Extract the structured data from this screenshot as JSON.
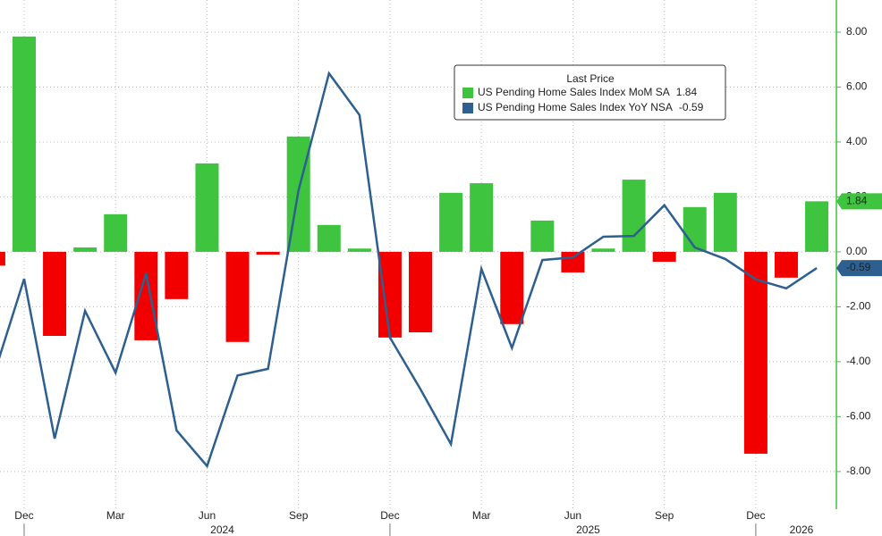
{
  "chart_data": {
    "type": "bar-line",
    "categories": [
      null,
      "Dec",
      null,
      null,
      "Mar",
      null,
      null,
      "Jun",
      null,
      null,
      "Sep",
      null,
      null,
      "Dec",
      null,
      null,
      "Mar",
      null,
      null,
      "Jun",
      null,
      null,
      "Sep",
      null,
      null,
      "Dec",
      null,
      null
    ],
    "year_labels": [
      "2024",
      "2025",
      "2026"
    ],
    "legend_title": "Last Price",
    "series": [
      {
        "name": "US Pending Home Sales Index MoM SA",
        "type": "bar",
        "color": "#3ec43e",
        "negative_color": "#f20000",
        "values": [
          -0.5,
          7.84,
          -3.06,
          0.16,
          1.37,
          -3.22,
          -1.72,
          3.22,
          -3.28,
          -0.1,
          4.2,
          0.98,
          0.12,
          -3.12,
          -2.93,
          2.15,
          2.5,
          -2.63,
          1.14,
          -0.75,
          0.12,
          2.63,
          -0.36,
          1.63,
          2.15,
          -7.35,
          -0.94,
          1.84
        ]
      },
      {
        "name": "US Pending Home Sales Index YoY NSA",
        "type": "line",
        "color": "#2d5f8f",
        "values": [
          -4.5,
          -0.98,
          -6.8,
          -2.15,
          -4.4,
          -0.78,
          -6.5,
          -7.8,
          -4.5,
          -4.26,
          2.24,
          6.5,
          4.98,
          -3.12,
          -5.0,
          -7.0,
          -0.62,
          -3.5,
          -0.3,
          -0.2,
          0.55,
          0.58,
          1.7,
          0.16,
          -0.26,
          -1.0,
          -1.33,
          -0.59
        ]
      }
    ],
    "ylim": [
      -9.37,
      9.17
    ],
    "yticks": [
      {
        "value": 8,
        "label": "8.00"
      },
      {
        "value": 6,
        "label": "6.00"
      },
      {
        "value": 4,
        "label": "4.00"
      },
      {
        "value": 2,
        "label": "2.00"
      },
      {
        "value": 0,
        "label": "0.00"
      },
      {
        "value": -2,
        "label": "-2.00"
      },
      {
        "value": -4,
        "label": "-4.00"
      },
      {
        "value": -6,
        "label": "-6.00"
      },
      {
        "value": -8,
        "label": "-8.00"
      }
    ],
    "grid": true
  }
}
